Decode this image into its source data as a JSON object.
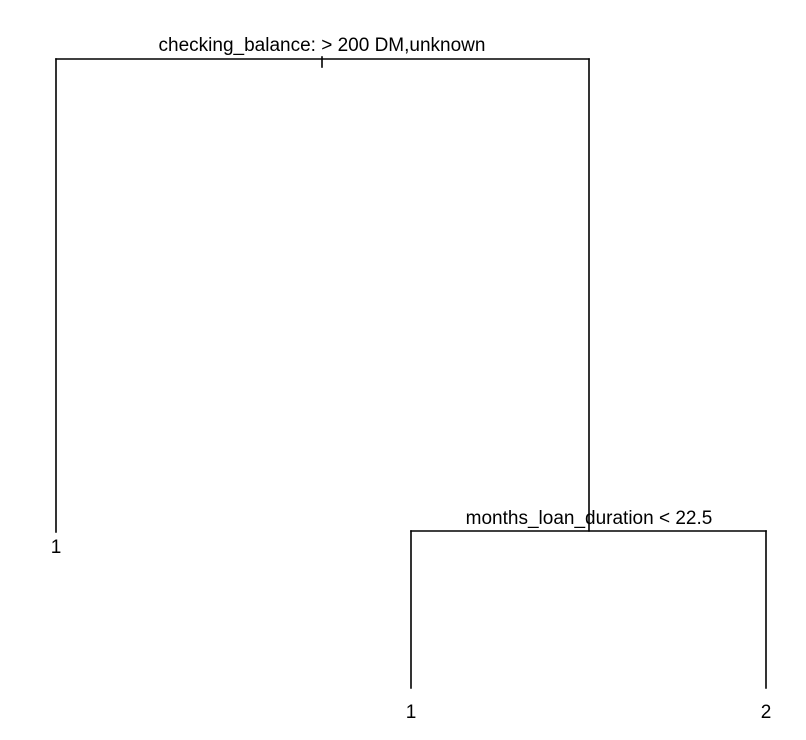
{
  "tree": {
    "root_split": "checking_balance: > 200 DM,unknown",
    "right_split": "months_loan_duration < 22.5",
    "leaves": [
      "1",
      "1",
      "2"
    ],
    "colors": {
      "line": "#000000",
      "text": "#000000",
      "background": "#ffffff"
    }
  }
}
